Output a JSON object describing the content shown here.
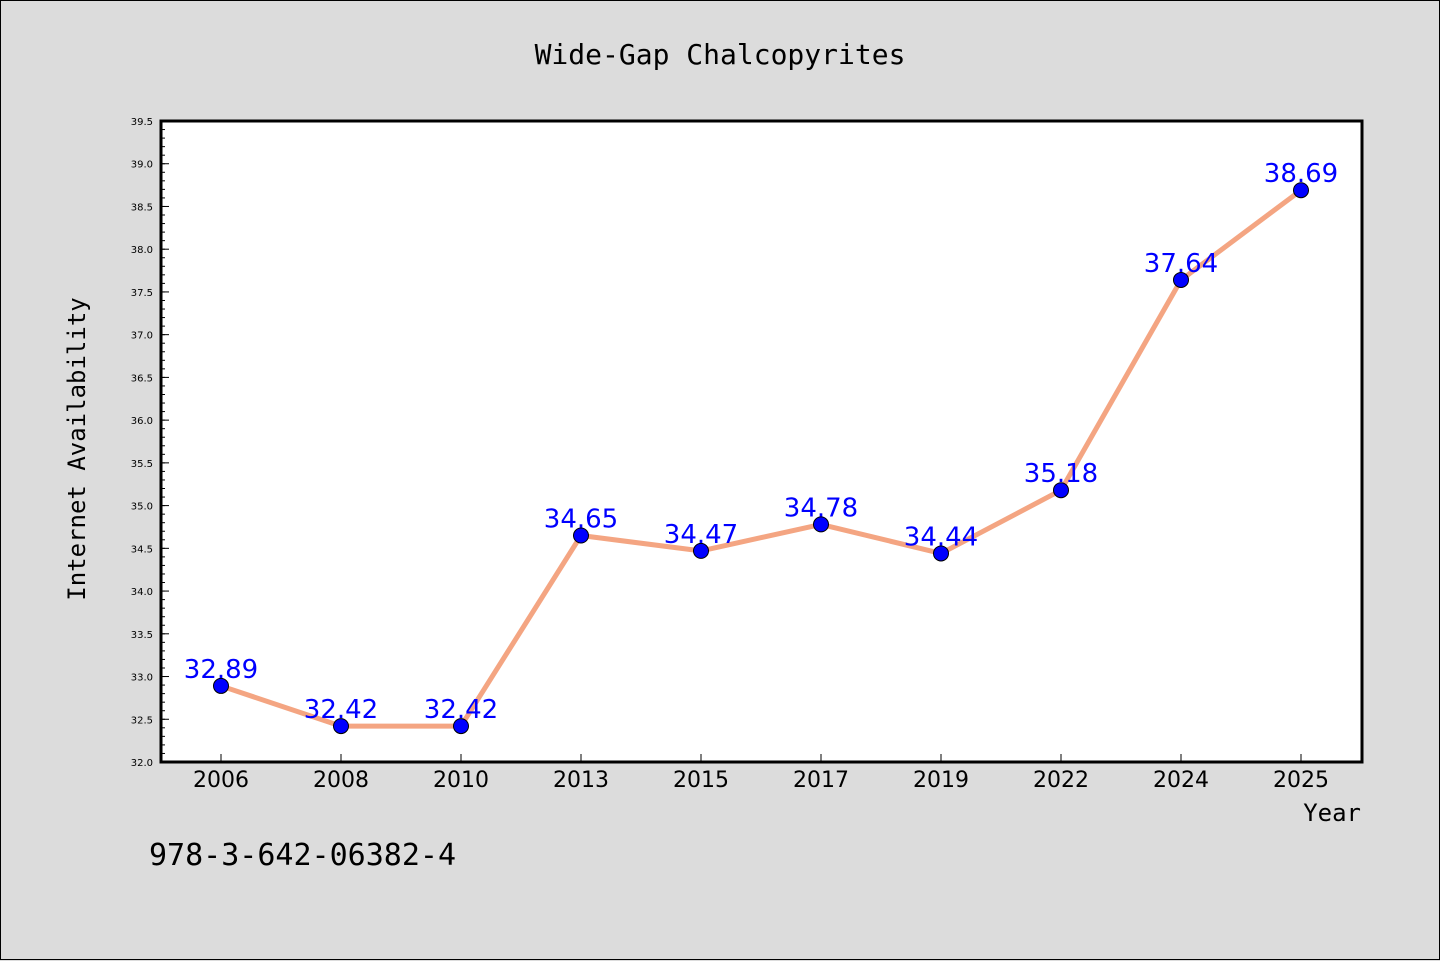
{
  "chart_data": {
    "type": "line",
    "title": "Wide-Gap Chalcopyrites",
    "xlabel": "Year",
    "ylabel": "Internet Availability",
    "categories": [
      "2006",
      "2008",
      "2010",
      "2013",
      "2015",
      "2017",
      "2019",
      "2022",
      "2024",
      "2025"
    ],
    "series": [
      {
        "values": [
          32.89,
          32.42,
          32.42,
          34.65,
          34.47,
          34.78,
          34.44,
          35.18,
          37.64,
          38.69
        ],
        "data_labels": [
          "32.89",
          "32.42",
          "32.42",
          "34.65",
          "34.47",
          "34.78",
          "34.44",
          "35.18",
          "37.64",
          "38.69"
        ],
        "line_color": "#f4a582",
        "marker_color": "#0000ff",
        "label_color": "#0000ff"
      }
    ],
    "ylim": [
      32.0,
      39.5
    ],
    "yticks": [
      "32.0",
      "32.5",
      "33.0",
      "33.5",
      "34.0",
      "34.5",
      "35.0",
      "35.5",
      "36.0",
      "36.5",
      "37.0",
      "37.5",
      "38.0",
      "38.5",
      "39.0",
      "39.5"
    ],
    "grid": false,
    "legend": "none"
  },
  "annotation": "978-3-642-06382-4",
  "colors": {
    "background": "#dcdcdc",
    "plot_background": "#ffffff",
    "axis": "#000000"
  }
}
